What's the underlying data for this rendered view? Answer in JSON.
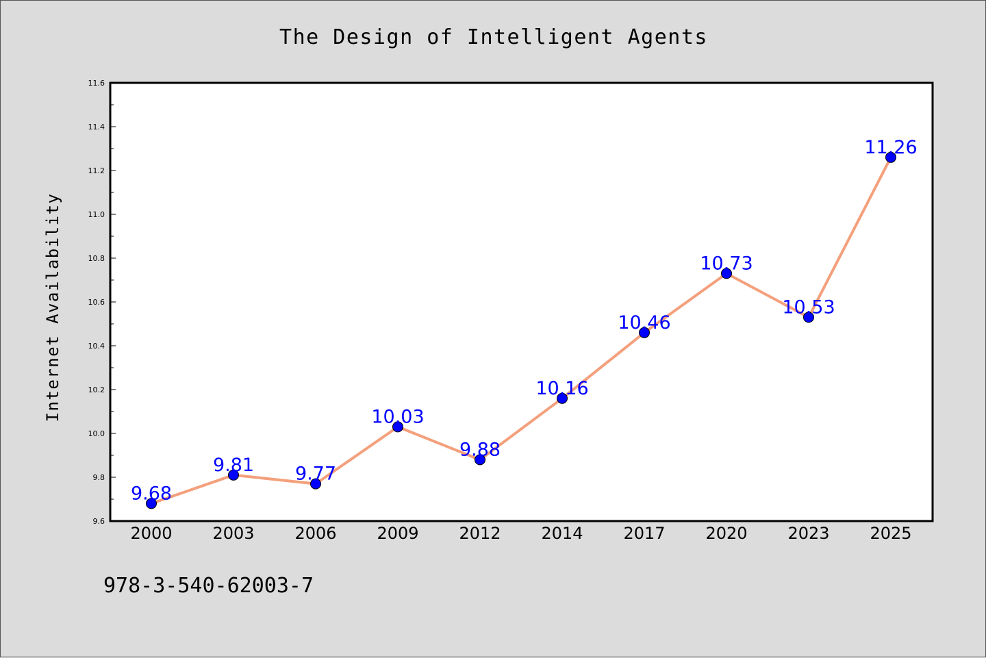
{
  "chart_data": {
    "type": "line",
    "title": "The Design of Intelligent Agents",
    "xlabel": "",
    "ylabel": "Internet Availability",
    "categories": [
      "2000",
      "2003",
      "2006",
      "2009",
      "2012",
      "2014",
      "2017",
      "2020",
      "2023",
      "2025"
    ],
    "series": [
      {
        "values": [
          9.68,
          9.81,
          9.77,
          10.03,
          9.88,
          10.16,
          10.46,
          10.73,
          10.53,
          11.26
        ],
        "labels": [
          "9.68",
          "9.81",
          "9.77",
          "10.03",
          "9.88",
          "10.16",
          "10.46",
          "10.73",
          "10.53",
          "11.26"
        ]
      }
    ],
    "ylim": [
      9.6,
      11.6
    ],
    "yticks": [
      9.6,
      9.8,
      10.0,
      10.2,
      10.4,
      10.6,
      10.8,
      11.0,
      11.2,
      11.4,
      11.6
    ],
    "ytick_labels": [
      "9.6",
      "9.8",
      "10.0",
      "10.2",
      "10.4",
      "10.6",
      "10.8",
      "11.0",
      "11.2",
      "11.4",
      "11.6"
    ],
    "grid": false,
    "legend": "none",
    "colors": {
      "line": "#f4a07c",
      "marker": "#0000ff",
      "data_label": "#0000ff",
      "plot_background": "#ffffff",
      "figure_background": "#dcdcdc"
    }
  },
  "footer": {
    "isbn": "978-3-540-62003-7"
  }
}
